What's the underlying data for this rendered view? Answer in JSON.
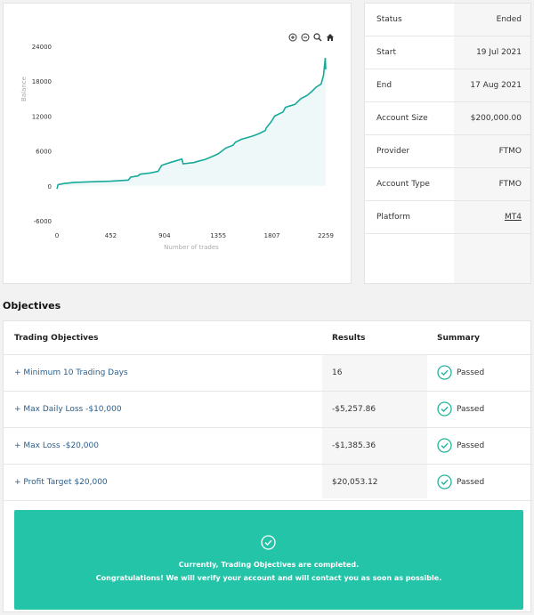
{
  "chart": {
    "tools": {
      "zoom_in_icon": "zoom-in-icon",
      "zoom_out_icon": "zoom-out-icon",
      "magnifier_icon": "magnifier-icon",
      "home_icon": "home-icon"
    }
  },
  "chart_data": {
    "type": "area",
    "xlabel": "Number of trades",
    "ylabel": "Balance",
    "xlim": [
      0,
      2259
    ],
    "ylim": [
      -6000,
      24000
    ],
    "xticks": [
      "0",
      "452",
      "904",
      "1355",
      "1807",
      "2259"
    ],
    "yticks": [
      "24000",
      "18000",
      "12000",
      "6000",
      "0",
      "-6000"
    ],
    "x": [
      0,
      10,
      60,
      150,
      300,
      452,
      600,
      620,
      680,
      700,
      780,
      850,
      880,
      904,
      950,
      1000,
      1050,
      1060,
      1150,
      1200,
      1240,
      1300,
      1355,
      1420,
      1480,
      1500,
      1550,
      1600,
      1650,
      1700,
      1750,
      1760,
      1800,
      1830,
      1900,
      1920,
      1950,
      2000,
      2050,
      2100,
      2140,
      2180,
      2220,
      2240,
      2250,
      2255,
      2259
    ],
    "y": [
      -500,
      200,
      400,
      600,
      700,
      800,
      1000,
      1500,
      1700,
      2000,
      2200,
      2500,
      3500,
      3700,
      4000,
      4300,
      4600,
      3800,
      4000,
      4300,
      4500,
      5000,
      5500,
      6500,
      7000,
      7500,
      8000,
      8300,
      8600,
      9000,
      9500,
      10000,
      11000,
      12000,
      12700,
      13500,
      13700,
      14000,
      15000,
      15500,
      16200,
      17000,
      17500,
      19000,
      21000,
      22000,
      20000
    ],
    "line_color": "#18a99a",
    "fill_color": "#eef8f8"
  },
  "info": {
    "rows": [
      {
        "label": "Status",
        "value": "Ended"
      },
      {
        "label": "Start",
        "value": "19 Jul 2021"
      },
      {
        "label": "End",
        "value": "17 Aug 2021"
      },
      {
        "label": "Account Size",
        "value": "$200,000.00"
      },
      {
        "label": "Provider",
        "value": "FTMO"
      },
      {
        "label": "Account Type",
        "value": "FTMO"
      },
      {
        "label": "Platform",
        "value": "MT4"
      }
    ]
  },
  "objectives": {
    "heading": "Objectives",
    "columns": {
      "objective": "Trading Objectives",
      "results": "Results",
      "summary": "Summary"
    },
    "rows": [
      {
        "name": "+ Minimum 10 Trading Days",
        "result": "16",
        "summary": "Passed"
      },
      {
        "name": "+ Max Daily Loss -$10,000",
        "result": "-$5,257.86",
        "summary": "Passed"
      },
      {
        "name": "+ Max Loss -$20,000",
        "result": "-$1,385.36",
        "summary": "Passed"
      },
      {
        "name": "+ Profit Target $20,000",
        "result": "$20,053.12",
        "summary": "Passed"
      }
    ],
    "banner": {
      "line1": "Currently, Trading Objectives are completed.",
      "line2": "Congratulations! We will verify your account and will contact you as soon as possible.",
      "color": "#23c4a8"
    }
  }
}
